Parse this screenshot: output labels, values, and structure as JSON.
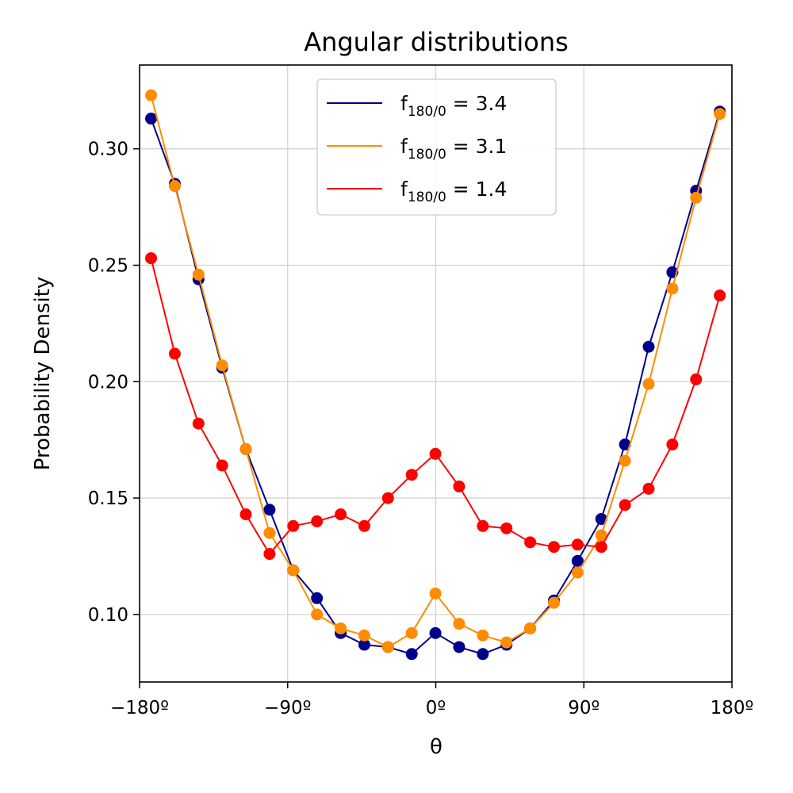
{
  "chart_data": {
    "type": "line",
    "title": "Angular distributions",
    "xlabel": "θ",
    "ylabel": "Probability Density",
    "xlim": [
      -180,
      180
    ],
    "ylim": [
      0.071,
      0.336
    ],
    "xticks": [
      -180,
      -90,
      0,
      90,
      180
    ],
    "xtick_labels": [
      "−180º",
      "−90º",
      "0º",
      "90º",
      "180º"
    ],
    "yticks": [
      0.1,
      0.15,
      0.2,
      0.25,
      0.3
    ],
    "ytick_labels": [
      "0.10",
      "0.15",
      "0.20",
      "0.25",
      "0.30"
    ],
    "grid": true,
    "legend_position": "top-center",
    "x": [
      -173,
      -158.6,
      -144.2,
      -129.8,
      -115.4,
      -101,
      -86.6,
      -72.2,
      -57.8,
      -43.4,
      -29,
      -14.6,
      -0.2,
      14.2,
      28.6,
      43,
      57.4,
      71.8,
      86.2,
      100.6,
      115,
      129.4,
      143.8,
      158.2,
      172.6
    ],
    "series": [
      {
        "legend_base": "f",
        "legend_sub": "180/0",
        "legend_value": " = 3.4",
        "color": "#00008b",
        "values": [
          0.313,
          0.285,
          0.244,
          0.206,
          0.171,
          0.145,
          0.119,
          0.107,
          0.092,
          0.087,
          0.086,
          0.083,
          0.092,
          0.086,
          0.083,
          0.087,
          0.094,
          0.106,
          0.123,
          0.141,
          0.173,
          0.215,
          0.247,
          0.282,
          0.316
        ]
      },
      {
        "legend_base": "f",
        "legend_sub": "180/0",
        "legend_value": " = 3.1",
        "color": "#ff8c00",
        "values": [
          0.323,
          0.284,
          0.246,
          0.207,
          0.171,
          0.135,
          0.119,
          0.1,
          0.094,
          0.091,
          0.086,
          0.092,
          0.109,
          0.096,
          0.091,
          0.088,
          0.094,
          0.105,
          0.118,
          0.134,
          0.166,
          0.199,
          0.24,
          0.279,
          0.315
        ]
      },
      {
        "legend_base": "f",
        "legend_sub": "180/0",
        "legend_value": " = 1.4",
        "color": "#ff0000",
        "values": [
          0.253,
          0.212,
          0.182,
          0.164,
          0.143,
          0.126,
          0.138,
          0.14,
          0.143,
          0.138,
          0.15,
          0.16,
          0.169,
          0.155,
          0.138,
          0.137,
          0.131,
          0.129,
          0.13,
          0.129,
          0.147,
          0.154,
          0.173,
          0.201,
          0.237
        ]
      }
    ]
  }
}
